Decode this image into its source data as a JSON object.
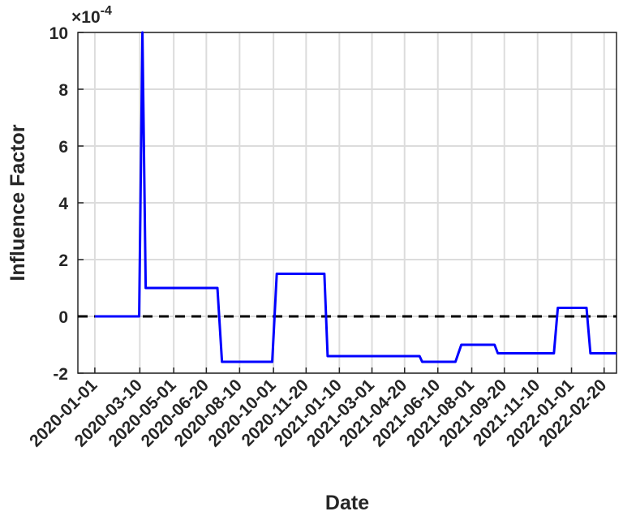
{
  "chart_data": {
    "type": "line",
    "x_label": "Date",
    "y_label": "Influence Factor",
    "y_multiplier": "×10",
    "y_multiplier_exponent": "-4",
    "xlim": [
      "2019-12-06",
      "2022-03-11"
    ],
    "xticks": [
      "2020-01-01",
      "2020-03-10",
      "2020-05-01",
      "2020-06-20",
      "2020-08-10",
      "2020-10-01",
      "2020-11-20",
      "2021-01-10",
      "2021-03-01",
      "2021-04-20",
      "2021-06-10",
      "2021-08-01",
      "2021-09-20",
      "2021-11-10",
      "2022-01-01",
      "2022-02-20"
    ],
    "ylim": [
      -2,
      10
    ],
    "yticks": [
      -2,
      0,
      2,
      4,
      6,
      8,
      10
    ],
    "grid": true,
    "x": [
      "2020-01-01",
      "2020-03-09",
      "2020-03-14",
      "2020-03-19",
      "2020-07-07",
      "2020-07-14",
      "2020-09-29",
      "2020-10-06",
      "2020-12-18",
      "2020-12-23",
      "2021-05-13",
      "2021-05-17",
      "2021-07-07",
      "2021-07-16",
      "2021-09-05",
      "2021-09-10",
      "2021-12-05",
      "2021-12-11",
      "2022-01-24",
      "2022-01-30",
      "2022-03-11"
    ],
    "series": [
      {
        "color": "#0000ff",
        "values": [
          0,
          0,
          10,
          1,
          1,
          -1.6,
          -1.6,
          1.5,
          1.5,
          -1.4,
          -1.4,
          -1.6,
          -1.6,
          -1,
          -1,
          -1.3,
          -1.3,
          0.3,
          0.3,
          -1.3,
          -1.3
        ]
      }
    ],
    "reference_line": {
      "value": 0,
      "color": "#000000",
      "dashed": true
    }
  }
}
